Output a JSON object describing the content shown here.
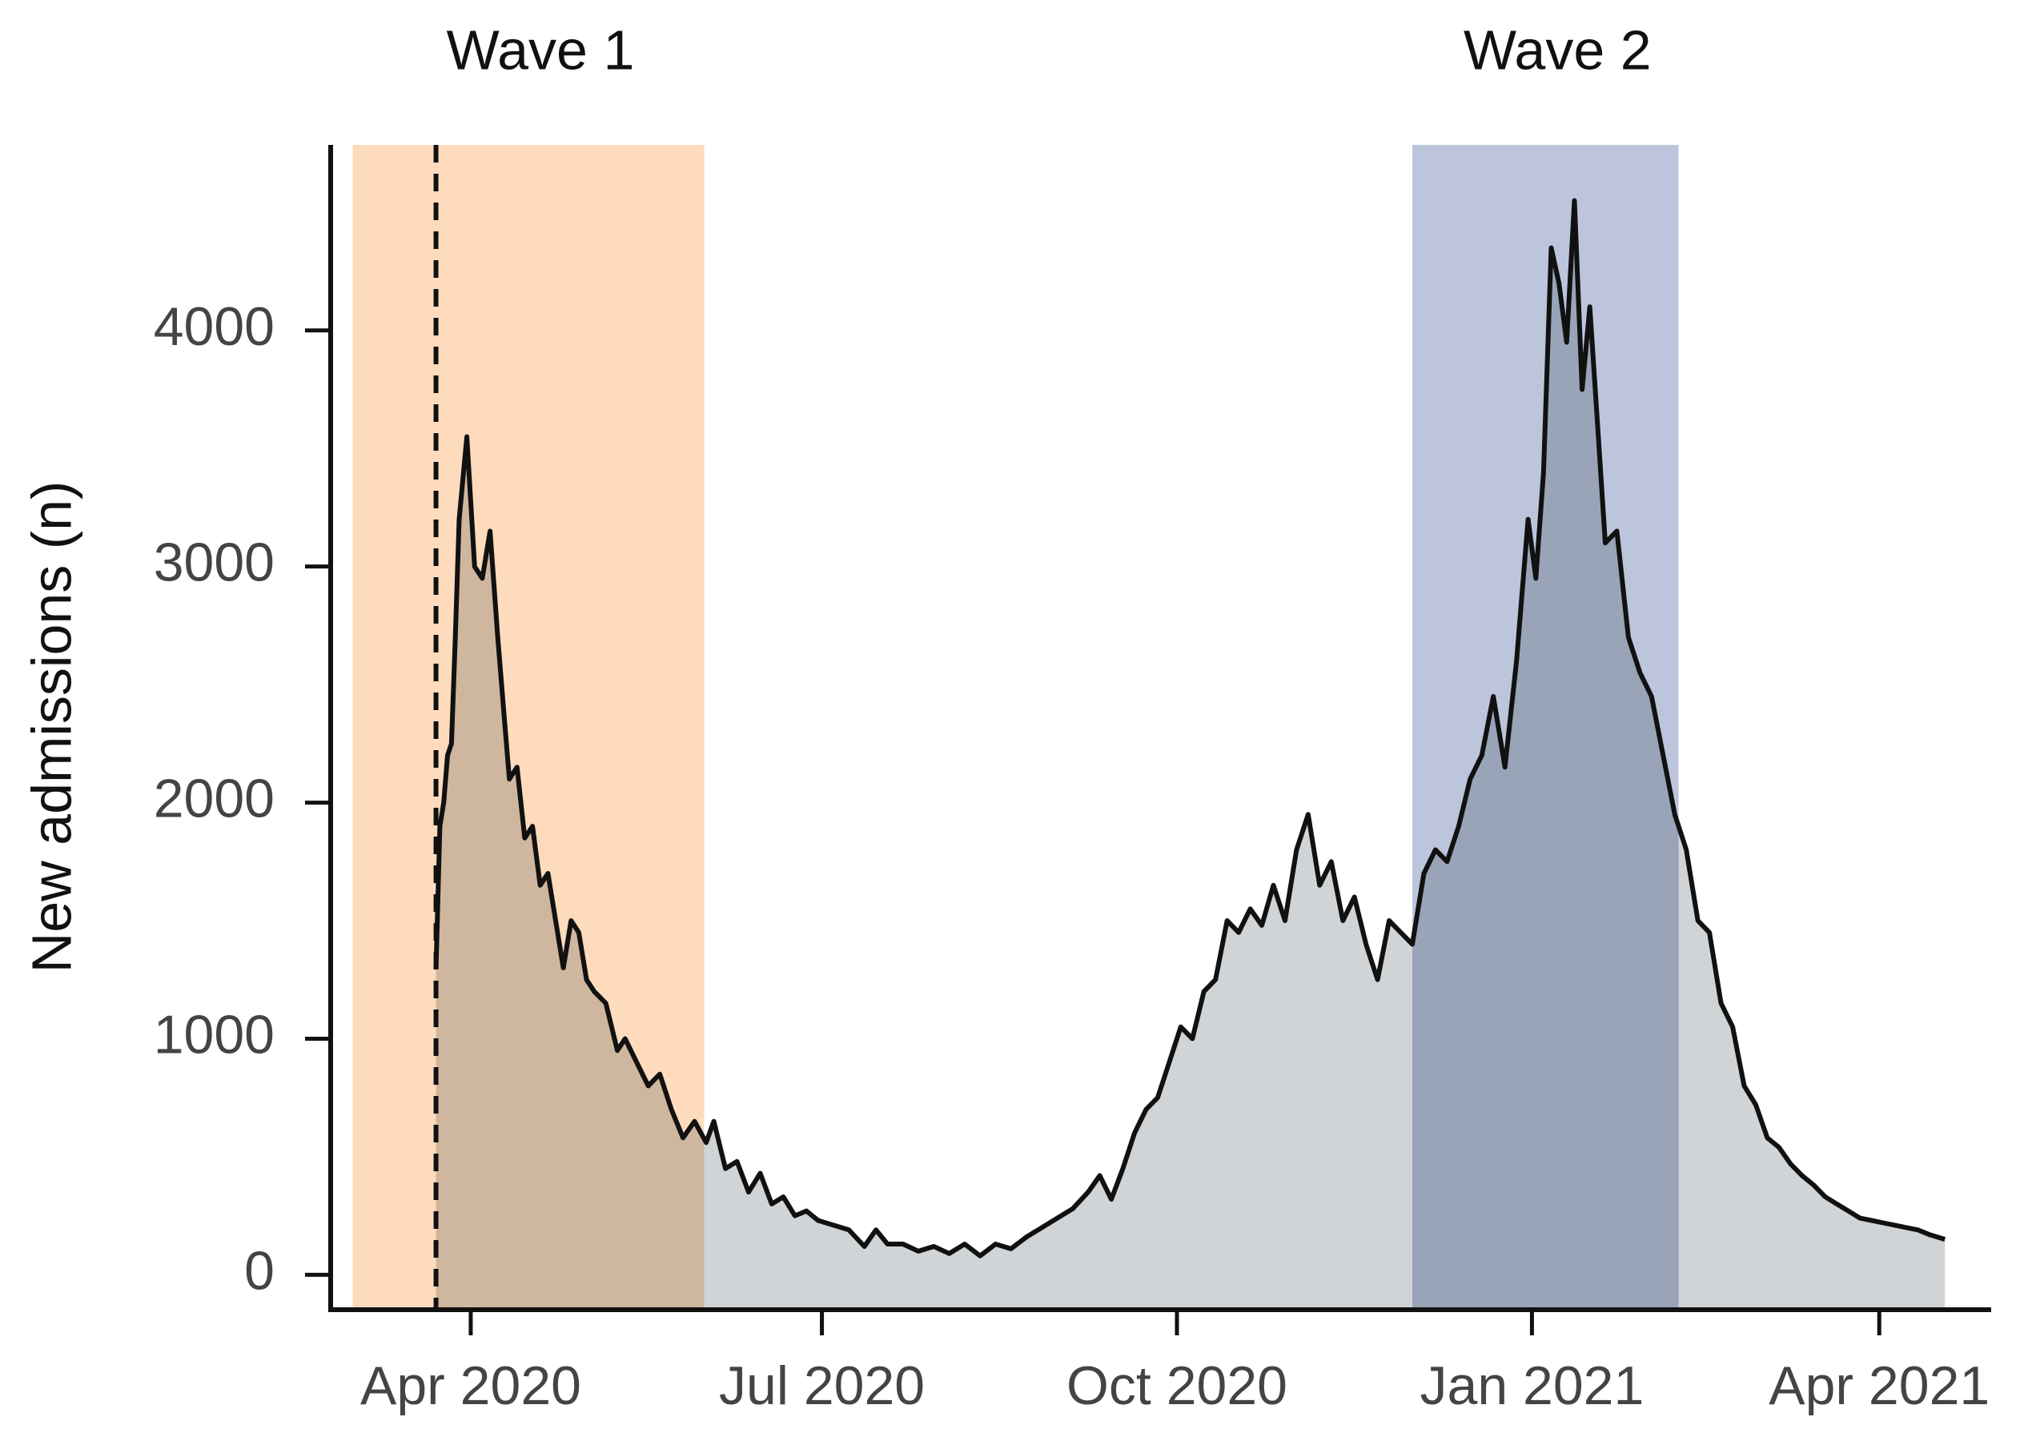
{
  "chart_data": {
    "type": "area",
    "y_label": "New admissions (n)",
    "xlim": [
      -36.3,
      394
    ],
    "ylim": [
      -148,
      4786
    ],
    "xticks": [
      {
        "value": 0,
        "label": "Apr 2020"
      },
      {
        "value": 91,
        "label": "Jul 2020"
      },
      {
        "value": 183,
        "label": "Oct 2020"
      },
      {
        "value": 275,
        "label": "Jan 2021"
      },
      {
        "value": 365,
        "label": "Apr 2021"
      }
    ],
    "yticks": [
      0,
      1000,
      2000,
      3000,
      4000
    ],
    "regions": [
      {
        "name": "Wave 1",
        "start": -30.6,
        "end": 60.5,
        "color": "#fddbbc"
      },
      {
        "name": "Wave 2",
        "start": 244,
        "end": 313,
        "color": "#bcc5dc"
      }
    ],
    "vline": -9,
    "area_color": "#d1d4d6",
    "series": [
      {
        "color": "#111111",
        "x": [
          -9,
          -8,
          -7,
          -6,
          -5,
          -4,
          -3,
          -1,
          1,
          3,
          5,
          7,
          9,
          10,
          12,
          14,
          16,
          18,
          20,
          22,
          24,
          26,
          28,
          30,
          32,
          35,
          38,
          40,
          43,
          46,
          49,
          52,
          55,
          58,
          61,
          63,
          66,
          69,
          72,
          75,
          78,
          81,
          84,
          87,
          90,
          94,
          98,
          102,
          105,
          108,
          112,
          116,
          120,
          124,
          128,
          132,
          136,
          140,
          144,
          148,
          152,
          156,
          160,
          163,
          166,
          169,
          172,
          175,
          178,
          181,
          184,
          187,
          190,
          193,
          196,
          199,
          202,
          205,
          208,
          211,
          214,
          217,
          220,
          223,
          226,
          229,
          232,
          235,
          238,
          241,
          244,
          247,
          250,
          253,
          256,
          259,
          262,
          265,
          268,
          271,
          274,
          276,
          278,
          280,
          282,
          284,
          286,
          288,
          290,
          292,
          294,
          297,
          300,
          303,
          306,
          309,
          312,
          315,
          318,
          321,
          324,
          327,
          330,
          333,
          336,
          339,
          342,
          345,
          348,
          351,
          354,
          357,
          360,
          363,
          366,
          369,
          372,
          375,
          378,
          382
        ],
        "values": [
          1300,
          1900,
          2000,
          2200,
          2250,
          2700,
          3200,
          3550,
          3000,
          2950,
          3150,
          2700,
          2300,
          2100,
          2150,
          1850,
          1900,
          1650,
          1700,
          1500,
          1300,
          1500,
          1450,
          1250,
          1200,
          1150,
          950,
          1000,
          900,
          800,
          850,
          700,
          580,
          650,
          560,
          650,
          450,
          480,
          350,
          430,
          300,
          330,
          250,
          270,
          230,
          210,
          190,
          120,
          190,
          130,
          130,
          100,
          120,
          90,
          130,
          80,
          130,
          110,
          160,
          200,
          240,
          280,
          350,
          420,
          320,
          450,
          600,
          700,
          750,
          900,
          1050,
          1000,
          1200,
          1250,
          1500,
          1450,
          1550,
          1480,
          1650,
          1500,
          1800,
          1950,
          1650,
          1750,
          1500,
          1600,
          1400,
          1250,
          1500,
          1450,
          1400,
          1700,
          1800,
          1750,
          1900,
          2100,
          2200,
          2450,
          2150,
          2600,
          3200,
          2950,
          3400,
          4350,
          4200,
          3950,
          4550,
          3750,
          4100,
          3600,
          3100,
          3150,
          2700,
          2550,
          2450,
          2200,
          1950,
          1800,
          1500,
          1450,
          1150,
          1050,
          800,
          720,
          580,
          540,
          470,
          420,
          380,
          330,
          300,
          270,
          240,
          230,
          220,
          210,
          200,
          190,
          170,
          150
        ]
      }
    ]
  }
}
